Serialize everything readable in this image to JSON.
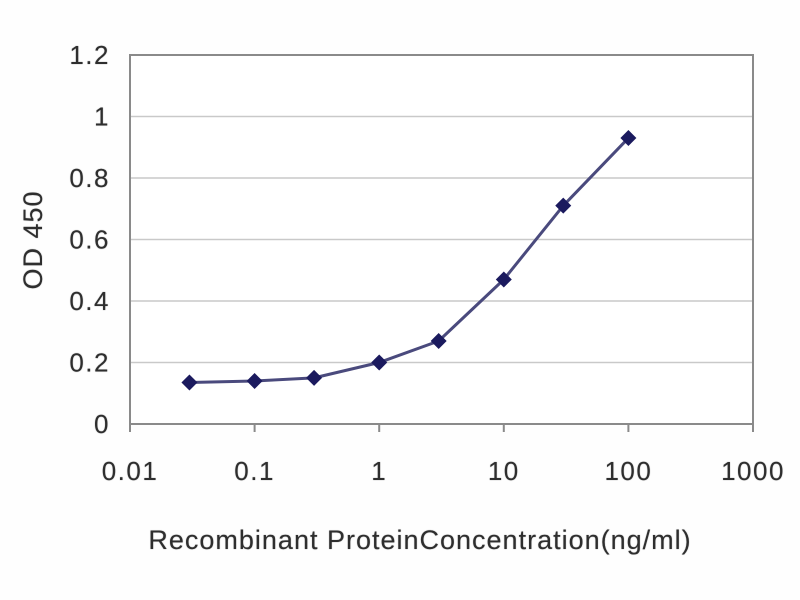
{
  "chart_data": {
    "type": "line",
    "title": "",
    "xlabel": "Recombinant ProteinConcentration(ng/ml)",
    "ylabel": "OD 450",
    "x_scale": "log",
    "xlim": [
      0.01,
      1000
    ],
    "ylim": [
      0,
      1.2
    ],
    "x_ticks": [
      0.01,
      0.1,
      1,
      10,
      100,
      1000
    ],
    "x_tick_labels": [
      "0.01",
      "0.1",
      "1",
      "10",
      "100",
      "1000"
    ],
    "y_ticks": [
      0,
      0.2,
      0.4,
      0.6,
      0.8,
      1,
      1.2
    ],
    "y_tick_labels": [
      "0",
      "0.2",
      "0.4",
      "0.6",
      "0.8",
      "1",
      "1.2"
    ],
    "grid": "horizontal",
    "legend": "none",
    "series": [
      {
        "marker": "diamond",
        "x": [
          0.03,
          0.1,
          0.3,
          1,
          3,
          10,
          30,
          100
        ],
        "y": [
          0.135,
          0.14,
          0.15,
          0.2,
          0.27,
          0.47,
          0.71,
          0.93
        ]
      }
    ]
  },
  "colors": {
    "background": "#fefefe",
    "plot_background": "#ffffff",
    "axis_border": "#8a8a8a",
    "gridline": "#c9c9c9",
    "tick_mark": "#8a8a8a",
    "series_line": "#4a4a7d",
    "series_marker": "#1b1a5e",
    "text": "#2e2e2e"
  }
}
